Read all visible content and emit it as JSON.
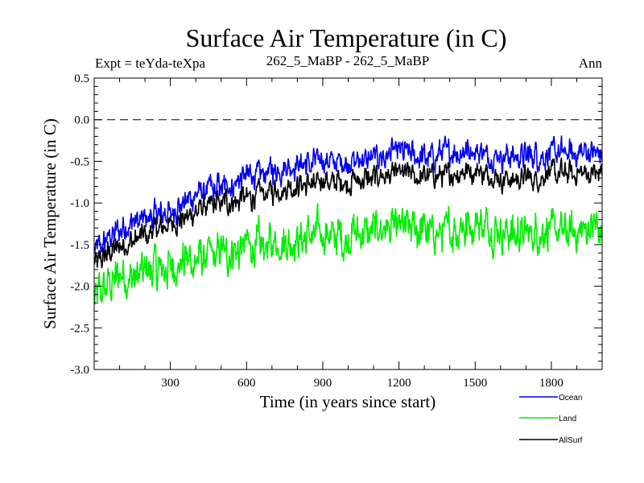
{
  "chart_data": {
    "type": "line",
    "title": "Surface Air Temperature (in C)",
    "subtitle_left": "Expt = teYda-teXpa",
    "subtitle_center": "262_5_MaBP - 262_5_MaBP",
    "subtitle_right": "Ann",
    "xlabel": "Time (in years since start)",
    "ylabel": "Surface Air Temperature (in C)",
    "xlim": [
      0,
      2000
    ],
    "ylim": [
      -3.0,
      0.5
    ],
    "xticks": [
      300,
      600,
      900,
      1200,
      1500,
      1800
    ],
    "xtick_labels": [
      "300",
      "600",
      "900",
      "1200",
      "1500",
      "1800"
    ],
    "yticks": [
      0.5,
      0.0,
      -0.5,
      -1.0,
      -1.5,
      -2.0,
      -2.5,
      -3.0
    ],
    "ytick_labels": [
      "0.5",
      "0.0",
      "-0.5",
      "-1.0",
      "-1.5",
      "-2.0",
      "-2.5",
      "-3.0"
    ],
    "reference_line": 0.0,
    "legend_position": "bottom-right",
    "series": [
      {
        "name": "Ocean",
        "color": "#0000ee",
        "x": [
          0,
          100,
          200,
          300,
          400,
          500,
          600,
          700,
          800,
          900,
          1000,
          1100,
          1200,
          1300,
          1400,
          1500,
          1600,
          1700,
          1800,
          1900,
          2000
        ],
        "values": [
          -1.6,
          -1.3,
          -1.2,
          -1.1,
          -0.9,
          -0.8,
          -0.7,
          -0.6,
          -0.55,
          -0.5,
          -0.5,
          -0.45,
          -0.4,
          -0.45,
          -0.4,
          -0.35,
          -0.45,
          -0.45,
          -0.4,
          -0.4,
          -0.4
        ]
      },
      {
        "name": "Land",
        "color": "#00ee00",
        "x": [
          0,
          100,
          200,
          300,
          400,
          500,
          600,
          700,
          800,
          900,
          1000,
          1100,
          1200,
          1300,
          1400,
          1500,
          1600,
          1700,
          1800,
          1900,
          2000
        ],
        "values": [
          -2.1,
          -1.9,
          -1.85,
          -1.75,
          -1.7,
          -1.6,
          -1.55,
          -1.5,
          -1.45,
          -1.4,
          -1.4,
          -1.35,
          -1.3,
          -1.35,
          -1.35,
          -1.25,
          -1.35,
          -1.35,
          -1.35,
          -1.35,
          -1.3
        ]
      },
      {
        "name": "AllSurf",
        "color": "#000000",
        "x": [
          0,
          100,
          200,
          300,
          400,
          500,
          600,
          700,
          800,
          900,
          1000,
          1100,
          1200,
          1300,
          1400,
          1500,
          1600,
          1700,
          1800,
          1900,
          2000
        ],
        "values": [
          -1.75,
          -1.5,
          -1.4,
          -1.25,
          -1.1,
          -1.0,
          -0.95,
          -0.85,
          -0.8,
          -0.75,
          -0.75,
          -0.7,
          -0.65,
          -0.7,
          -0.65,
          -0.6,
          -0.7,
          -0.7,
          -0.65,
          -0.65,
          -0.65
        ]
      }
    ]
  }
}
